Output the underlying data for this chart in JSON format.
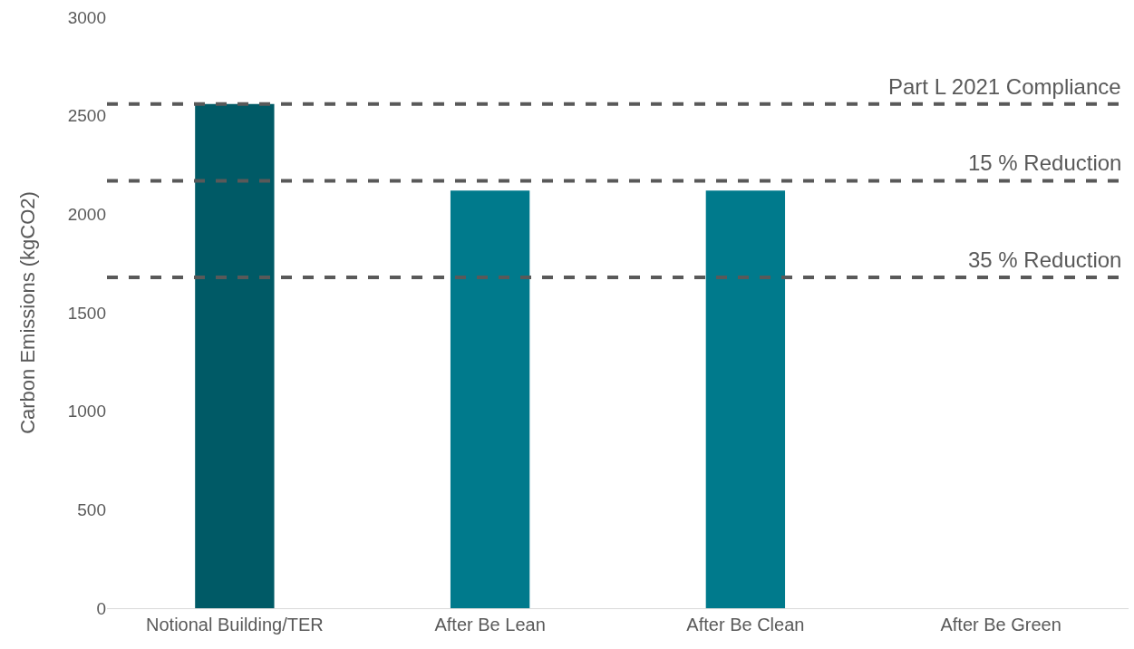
{
  "chart_data": {
    "type": "bar",
    "ylabel": "Carbon Emissions (kgCO2)",
    "categories": [
      "Notional Building/TER",
      "After Be Lean",
      "After Be Clean",
      "After Be Green"
    ],
    "values": [
      2560,
      2120,
      2120,
      null
    ],
    "colors": [
      "#005a66",
      "#007a8c",
      "#007a8c",
      "#007a8c"
    ],
    "ylim": [
      0,
      3000
    ],
    "yticks": [
      0,
      500,
      1000,
      1500,
      2000,
      2500,
      3000
    ],
    "grid": false,
    "legend": false,
    "ref_lines": [
      {
        "axis": "y",
        "value": 2560,
        "label": "Part L 2021 Compliance",
        "color": "#595959",
        "line_style": "dashed"
      },
      {
        "axis": "y",
        "value": 2170,
        "label": "15 % Reduction",
        "color": "#595959",
        "line_style": "dashed"
      },
      {
        "axis": "y",
        "value": 1680,
        "label": "35 % Reduction",
        "color": "#595959",
        "line_style": "dashed"
      }
    ]
  }
}
